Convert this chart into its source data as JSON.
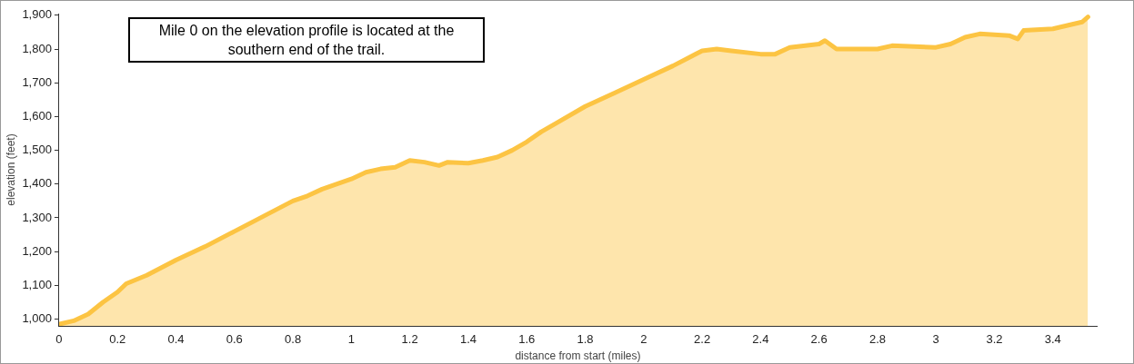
{
  "chart_data": {
    "type": "area",
    "xlabel": "distance from start (miles)",
    "ylabel": "elevation (feet)",
    "annotations": [
      "Mile 0 on the elevation profile is located at the southern end of the trail."
    ],
    "x": [
      0,
      0.05,
      0.1,
      0.15,
      0.2,
      0.23,
      0.3,
      0.4,
      0.5,
      0.6,
      0.7,
      0.8,
      0.85,
      0.9,
      1.0,
      1.05,
      1.1,
      1.15,
      1.2,
      1.25,
      1.3,
      1.33,
      1.4,
      1.45,
      1.5,
      1.55,
      1.6,
      1.65,
      1.7,
      1.8,
      1.9,
      2.0,
      2.1,
      2.2,
      2.25,
      2.3,
      2.4,
      2.45,
      2.5,
      2.6,
      2.62,
      2.66,
      2.7,
      2.8,
      2.85,
      3.0,
      3.05,
      3.1,
      3.15,
      3.25,
      3.28,
      3.3,
      3.4,
      3.45,
      3.5,
      3.52
    ],
    "series": [
      {
        "color": "#fcc443",
        "values": [
          985,
          995,
          1015,
          1050,
          1080,
          1105,
          1130,
          1175,
          1215,
          1260,
          1305,
          1350,
          1365,
          1385,
          1415,
          1435,
          1445,
          1450,
          1470,
          1465,
          1455,
          1465,
          1462,
          1470,
          1480,
          1500,
          1525,
          1555,
          1580,
          1630,
          1670,
          1710,
          1750,
          1795,
          1800,
          1795,
          1785,
          1785,
          1805,
          1815,
          1825,
          1800,
          1800,
          1800,
          1810,
          1805,
          1815,
          1835,
          1845,
          1840,
          1830,
          1855,
          1860,
          1870,
          1880,
          1895
        ]
      }
    ],
    "xlim": [
      0,
      3.55
    ],
    "xticks": [
      0,
      0.2,
      0.4,
      0.6,
      0.8,
      1,
      1.2,
      1.4,
      1.6,
      1.8,
      2,
      2.2,
      2.4,
      2.6,
      2.8,
      3,
      3.2,
      3.4
    ],
    "ylim": [
      980,
      1905
    ],
    "yticks": [
      {
        "value": 1000,
        "label": "1,000"
      },
      {
        "value": 1100,
        "label": "1,100"
      },
      {
        "value": 1200,
        "label": "1,200"
      },
      {
        "value": 1300,
        "label": "1,300"
      },
      {
        "value": 1400,
        "label": "1,400"
      },
      {
        "value": 1500,
        "label": "1,500"
      },
      {
        "value": 1600,
        "label": "1,600"
      },
      {
        "value": 1700,
        "label": "1,700"
      },
      {
        "value": 1800,
        "label": "1,800"
      },
      {
        "value": 1900,
        "label": "1,900"
      }
    ],
    "grid": false,
    "legend": false
  }
}
